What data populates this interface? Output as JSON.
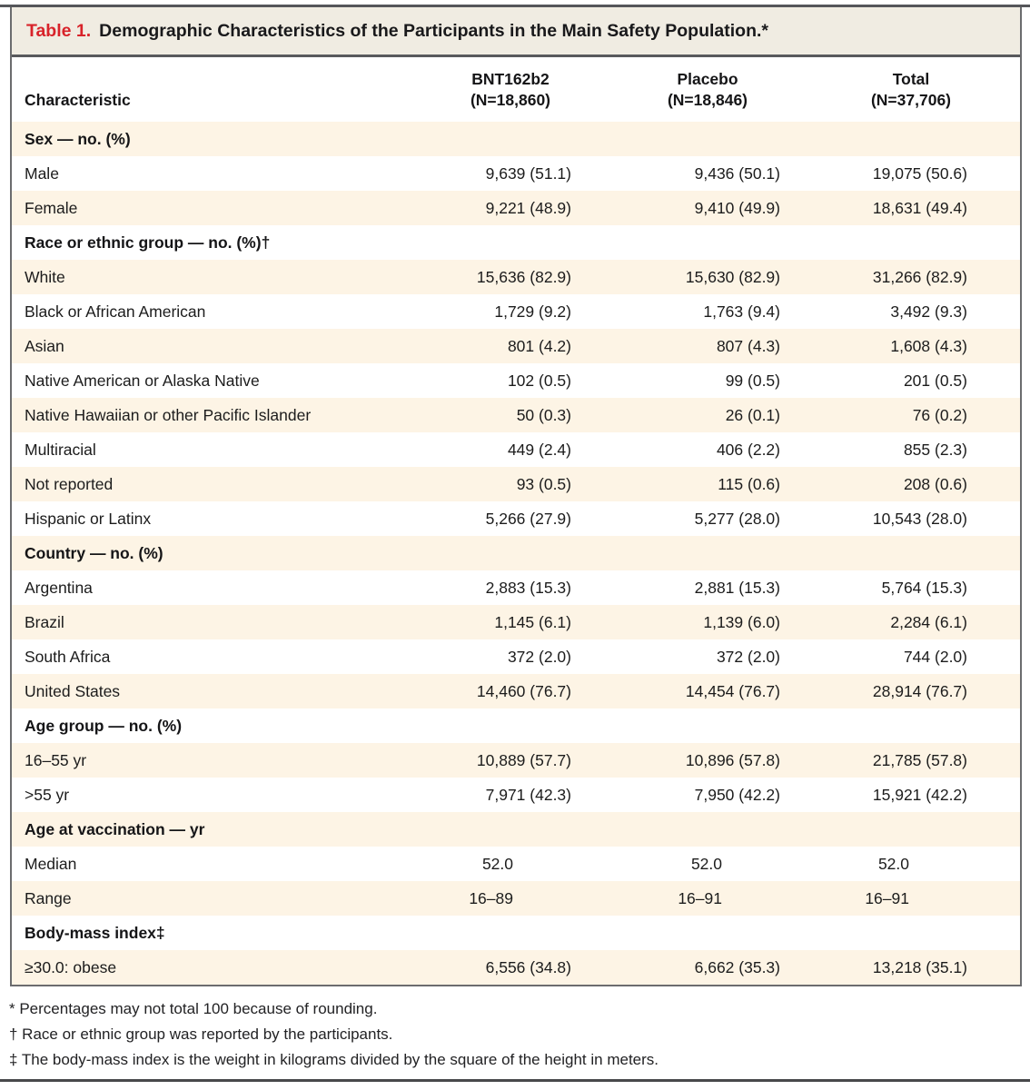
{
  "table": {
    "title_label": "Table 1.",
    "title_text": "Demographic Characteristics of the Participants in the Main Safety Population.*",
    "columns": {
      "characteristic": "Characteristic",
      "groups": [
        {
          "name": "BNT162b2",
          "n": "(N=18,860)"
        },
        {
          "name": "Placebo",
          "n": "(N=18,846)"
        },
        {
          "name": "Total",
          "n": "(N=37,706)"
        }
      ]
    },
    "rows": [
      {
        "label": "Sex — no. (%)",
        "section": true,
        "values": [
          "",
          "",
          ""
        ]
      },
      {
        "label": "Male",
        "section": false,
        "values": [
          "9,639 (51.1)",
          "9,436 (50.1)",
          "19,075 (50.6)"
        ]
      },
      {
        "label": "Female",
        "section": false,
        "values": [
          "9,221 (48.9)",
          "9,410 (49.9)",
          "18,631 (49.4)"
        ]
      },
      {
        "label": "Race or ethnic group — no. (%)†",
        "section": true,
        "values": [
          "",
          "",
          ""
        ]
      },
      {
        "label": "White",
        "section": false,
        "values": [
          "15,636 (82.9)",
          "15,630 (82.9)",
          "31,266 (82.9)"
        ]
      },
      {
        "label": "Black or African American",
        "section": false,
        "values": [
          "1,729 (9.2)",
          "1,763 (9.4)",
          "3,492 (9.3)"
        ]
      },
      {
        "label": "Asian",
        "section": false,
        "values": [
          "801 (4.2)",
          "807 (4.3)",
          "1,608 (4.3)"
        ]
      },
      {
        "label": "Native American or Alaska Native",
        "section": false,
        "values": [
          "102 (0.5)",
          "99 (0.5)",
          "201 (0.5)"
        ]
      },
      {
        "label": "Native Hawaiian or other Pacific Islander",
        "section": false,
        "values": [
          "50 (0.3)",
          "26 (0.1)",
          "76 (0.2)"
        ]
      },
      {
        "label": "Multiracial",
        "section": false,
        "values": [
          "449 (2.4)",
          "406 (2.2)",
          "855 (2.3)"
        ]
      },
      {
        "label": "Not reported",
        "section": false,
        "values": [
          "93 (0.5)",
          "115 (0.6)",
          "208 (0.6)"
        ]
      },
      {
        "label": "Hispanic or Latinx",
        "section": false,
        "values": [
          "5,266 (27.9)",
          "5,277 (28.0)",
          "10,543 (28.0)"
        ]
      },
      {
        "label": "Country — no. (%)",
        "section": true,
        "values": [
          "",
          "",
          ""
        ]
      },
      {
        "label": "Argentina",
        "section": false,
        "values": [
          "2,883 (15.3)",
          "2,881 (15.3)",
          "5,764 (15.3)"
        ]
      },
      {
        "label": "Brazil",
        "section": false,
        "values": [
          "1,145 (6.1)",
          "1,139 (6.0)",
          "2,284 (6.1)"
        ]
      },
      {
        "label": "South Africa",
        "section": false,
        "values": [
          "372 (2.0)",
          "372 (2.0)",
          "744 (2.0)"
        ]
      },
      {
        "label": "United States",
        "section": false,
        "values": [
          "14,460 (76.7)",
          "14,454 (76.7)",
          "28,914 (76.7)"
        ]
      },
      {
        "label": "Age group — no. (%)",
        "section": true,
        "values": [
          "",
          "",
          ""
        ]
      },
      {
        "label": "16–55 yr",
        "section": false,
        "values": [
          "10,889 (57.7)",
          "10,896 (57.8)",
          "21,785 (57.8)"
        ]
      },
      {
        "label": ">55 yr",
        "section": false,
        "values": [
          "7,971 (42.3)",
          "7,950 (42.2)",
          "15,921 (42.2)"
        ]
      },
      {
        "label": "Age at vaccination — yr",
        "section": true,
        "values": [
          "",
          "",
          ""
        ]
      },
      {
        "label": "Median",
        "section": false,
        "values": [
          "52.0",
          "52.0",
          "52.0"
        ]
      },
      {
        "label": "Range",
        "section": false,
        "values": [
          "16–89",
          "16–91",
          "16–91"
        ]
      },
      {
        "label": "Body-mass index‡",
        "section": true,
        "values": [
          "",
          "",
          ""
        ]
      },
      {
        "label": "≥30.0: obese",
        "section": false,
        "values": [
          "6,556 (34.8)",
          "6,662 (35.3)",
          "13,218 (35.1)"
        ]
      }
    ],
    "footnotes": [
      "* Percentages may not total 100 because of rounding.",
      "† Race or ethnic group was reported by the participants.",
      "‡ The body-mass index is the weight in kilograms divided by the square of the height in meters."
    ],
    "colors": {
      "title_bg": "#f0ece2",
      "row_beige": "#fdf4e5",
      "accent_red": "#d8232a",
      "border_gray": "#6b6c6e",
      "rule_dark": "#55565a"
    }
  }
}
